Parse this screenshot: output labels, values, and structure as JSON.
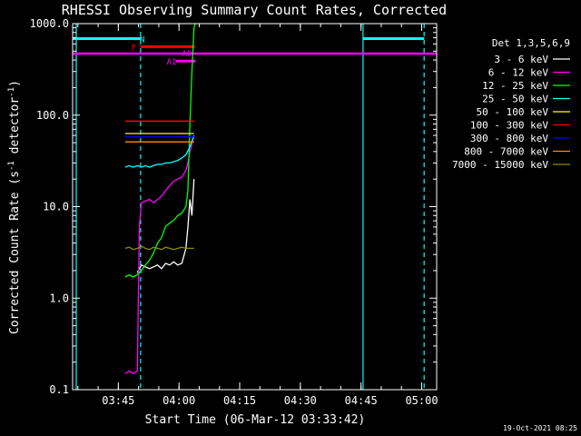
{
  "chart_data": {
    "type": "line",
    "title": "RHESSI Observing Summary Count Rates, Corrected",
    "ylabel_main": "Corrected Count Rate (s",
    "ylabel_sup": "-1",
    "ylabel_rest": " detector",
    "ylabel_sup2": "-1",
    "ylabel_end": ")",
    "xlabel": "Start Time (06-Mar-12 03:33:42)",
    "footer": "19-Oct-2021 08:25",
    "y_scale": "log",
    "ylim": [
      0.1,
      1000
    ],
    "xlim_minutes": [
      0,
      90
    ],
    "y_ticks": [
      {
        "v": 0.1,
        "label": "0.1"
      },
      {
        "v": 1,
        "label": "1.0"
      },
      {
        "v": 10,
        "label": "10.0"
      },
      {
        "v": 100,
        "label": "100.0"
      },
      {
        "v": 1000,
        "label": "1000.0"
      }
    ],
    "x_ticks": [
      {
        "t": 11.3,
        "label": "03:45"
      },
      {
        "t": 26.3,
        "label": "04:00"
      },
      {
        "t": 41.3,
        "label": "04:15"
      },
      {
        "t": 56.3,
        "label": "04:30"
      },
      {
        "t": 71.3,
        "label": "04:45"
      },
      {
        "t": 86.3,
        "label": "05:00"
      }
    ],
    "legend_title": "Det 1,3,5,6,9",
    "legend_placement": "right",
    "series": [
      {
        "name": "3 - 6 keV",
        "color": "#ffffff",
        "x": [
          16,
          17,
          19,
          20,
          21,
          22,
          23,
          24,
          25,
          26,
          27,
          28,
          28.5,
          29,
          29.5,
          30
        ],
        "y": [
          1.9,
          2.3,
          2.1,
          2.2,
          2.3,
          2.1,
          2.4,
          2.3,
          2.5,
          2.3,
          2.4,
          3.5,
          6,
          12,
          8,
          20
        ]
      },
      {
        "name": "6 - 12 keV",
        "color": "#ff00ff",
        "x": [
          13,
          14,
          15,
          16,
          16.5,
          17,
          18,
          19,
          20,
          21,
          22,
          23,
          24,
          25,
          26,
          27,
          28,
          28.5,
          29,
          30
        ],
        "y": [
          0.15,
          0.16,
          0.15,
          0.16,
          6,
          11,
          11.5,
          12,
          11,
          12,
          13,
          15,
          17,
          19,
          20,
          21,
          25,
          30,
          40,
          60
        ]
      },
      {
        "name": "12 - 25 keV",
        "color": "#00ff00",
        "x": [
          13,
          14,
          15,
          16,
          17,
          18,
          19,
          20,
          21,
          22,
          23,
          24,
          25,
          26,
          27,
          28,
          28.5,
          29,
          29.5,
          30,
          30.3
        ],
        "y": [
          1.7,
          1.8,
          1.7,
          1.8,
          2.0,
          2.3,
          2.6,
          3.1,
          4.0,
          4.6,
          6.1,
          6.6,
          7.1,
          8.0,
          8.5,
          10,
          15,
          80,
          300,
          900,
          1000
        ]
      },
      {
        "name": "25 - 50 keV",
        "color": "#00ffff",
        "x": [
          13,
          14,
          15,
          16,
          17,
          18,
          19,
          20,
          21,
          22,
          23,
          24,
          25,
          26,
          27,
          28,
          29,
          30
        ],
        "y": [
          27,
          28,
          27,
          28,
          27,
          28,
          27,
          28,
          29,
          29,
          30,
          30,
          31,
          32,
          34,
          37,
          45,
          60
        ]
      },
      {
        "name": "50 - 100 keV",
        "color": "#ffff00",
        "x": [
          13,
          30
        ],
        "y": [
          63,
          63
        ]
      },
      {
        "name": "100 - 300 keV",
        "color": "#ff0000",
        "x": [
          13,
          30
        ],
        "y": [
          86,
          86
        ]
      },
      {
        "name": "300 - 800 keV",
        "color": "#0000ff",
        "x": [
          13,
          30
        ],
        "y": [
          58,
          58
        ]
      },
      {
        "name": "800 - 7000 keV",
        "color": "#ff8c00",
        "x": [
          13,
          30
        ],
        "y": [
          51,
          51
        ]
      },
      {
        "name": "7000 - 15000 keV",
        "color": "#8b8b00",
        "x": [
          13,
          14,
          15,
          16,
          17,
          18,
          19,
          20,
          21,
          22,
          23,
          24,
          25,
          26,
          27,
          28,
          29,
          30
        ],
        "y": [
          3.5,
          3.6,
          3.4,
          3.5,
          3.7,
          3.5,
          3.4,
          3.6,
          3.5,
          3.4,
          3.6,
          3.5,
          3.4,
          3.5,
          3.6,
          3.5,
          3.5,
          3.5
        ]
      }
    ],
    "night_lines_color": "#00ffff",
    "night_solid_t": [
      0.9,
      71.8
    ],
    "night_dashed_t": [
      16.8,
      86.9
    ],
    "spacecraft_bars": [
      {
        "label": "N",
        "color": "#00ffff",
        "t_start": 0,
        "t_end": 16.8,
        "y": 685
      },
      {
        "label": "N",
        "color": "#00ffff",
        "t_start": 71.8,
        "t_end": 86.9,
        "y": 685
      },
      {
        "label": "F",
        "color": "#ff0000",
        "t_start": 16.8,
        "t_end": 30.2,
        "y": 560
      },
      {
        "label": "A0",
        "color": "#ff00ff",
        "t_start": 30.2,
        "t_end": 30.4,
        "y": 470
      },
      {
        "label": "A1",
        "color": "#ff00ff",
        "t_start": 25.5,
        "t_end": 30.4,
        "y": 390
      }
    ],
    "attenuator_line": {
      "color": "#ff00ff",
      "y": 470
    }
  }
}
